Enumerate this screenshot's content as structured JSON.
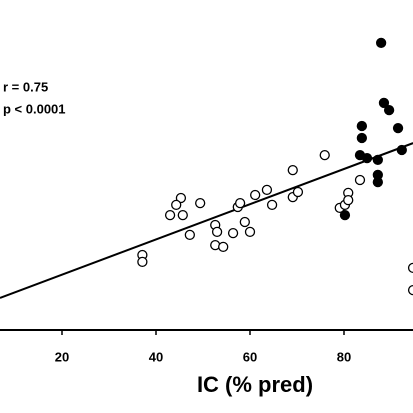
{
  "chart_data": {
    "type": "scatter",
    "xlabel": "IC (% pred)",
    "annotations": [
      "r = 0.75",
      "p < 0.0001"
    ],
    "xlim": [
      0,
      100
    ],
    "ylim": [
      0,
      100
    ],
    "xticks": [
      20,
      40,
      60,
      80
    ],
    "series": [
      {
        "color": "#ffffff",
        "x": [
          37.1,
          37.1,
          43.0,
          45.3,
          45.7,
          44.3,
          47.2,
          49.4,
          52.6,
          53.0,
          52.6,
          54.3,
          56.4,
          57.4,
          57.9,
          58.9,
          60.0,
          61.1,
          63.6,
          64.7,
          69.1,
          69.1,
          70.2,
          75.9,
          79.1,
          80.2,
          80.9,
          80.9,
          83.4,
          94.7,
          94.7
        ],
        "values": [
          25.0,
          22.7,
          38.3,
          44.0,
          38.3,
          41.7,
          31.7,
          42.3,
          35.0,
          32.7,
          28.3,
          27.7,
          32.3,
          41.0,
          42.3,
          36.0,
          32.7,
          45.0,
          46.7,
          41.7,
          53.3,
          44.3,
          46.0,
          58.3,
          40.7,
          41.7,
          45.7,
          43.3,
          50.0,
          20.7,
          13.3
        ]
      },
      {
        "color": "#000000",
        "x": [
          87.9,
          88.5,
          89.6,
          83.8,
          83.8,
          91.5,
          83.4,
          84.9,
          87.2,
          92.3,
          87.2,
          87.2,
          80.2
        ],
        "values": [
          95.7,
          75.7,
          73.3,
          68.0,
          64.0,
          67.3,
          58.3,
          57.3,
          56.7,
          60.0,
          51.7,
          49.3,
          38.3
        ]
      }
    ],
    "fit_line": {
      "x": [
        6.8,
        94.7
      ],
      "values": [
        10.7,
        62.3
      ]
    }
  }
}
